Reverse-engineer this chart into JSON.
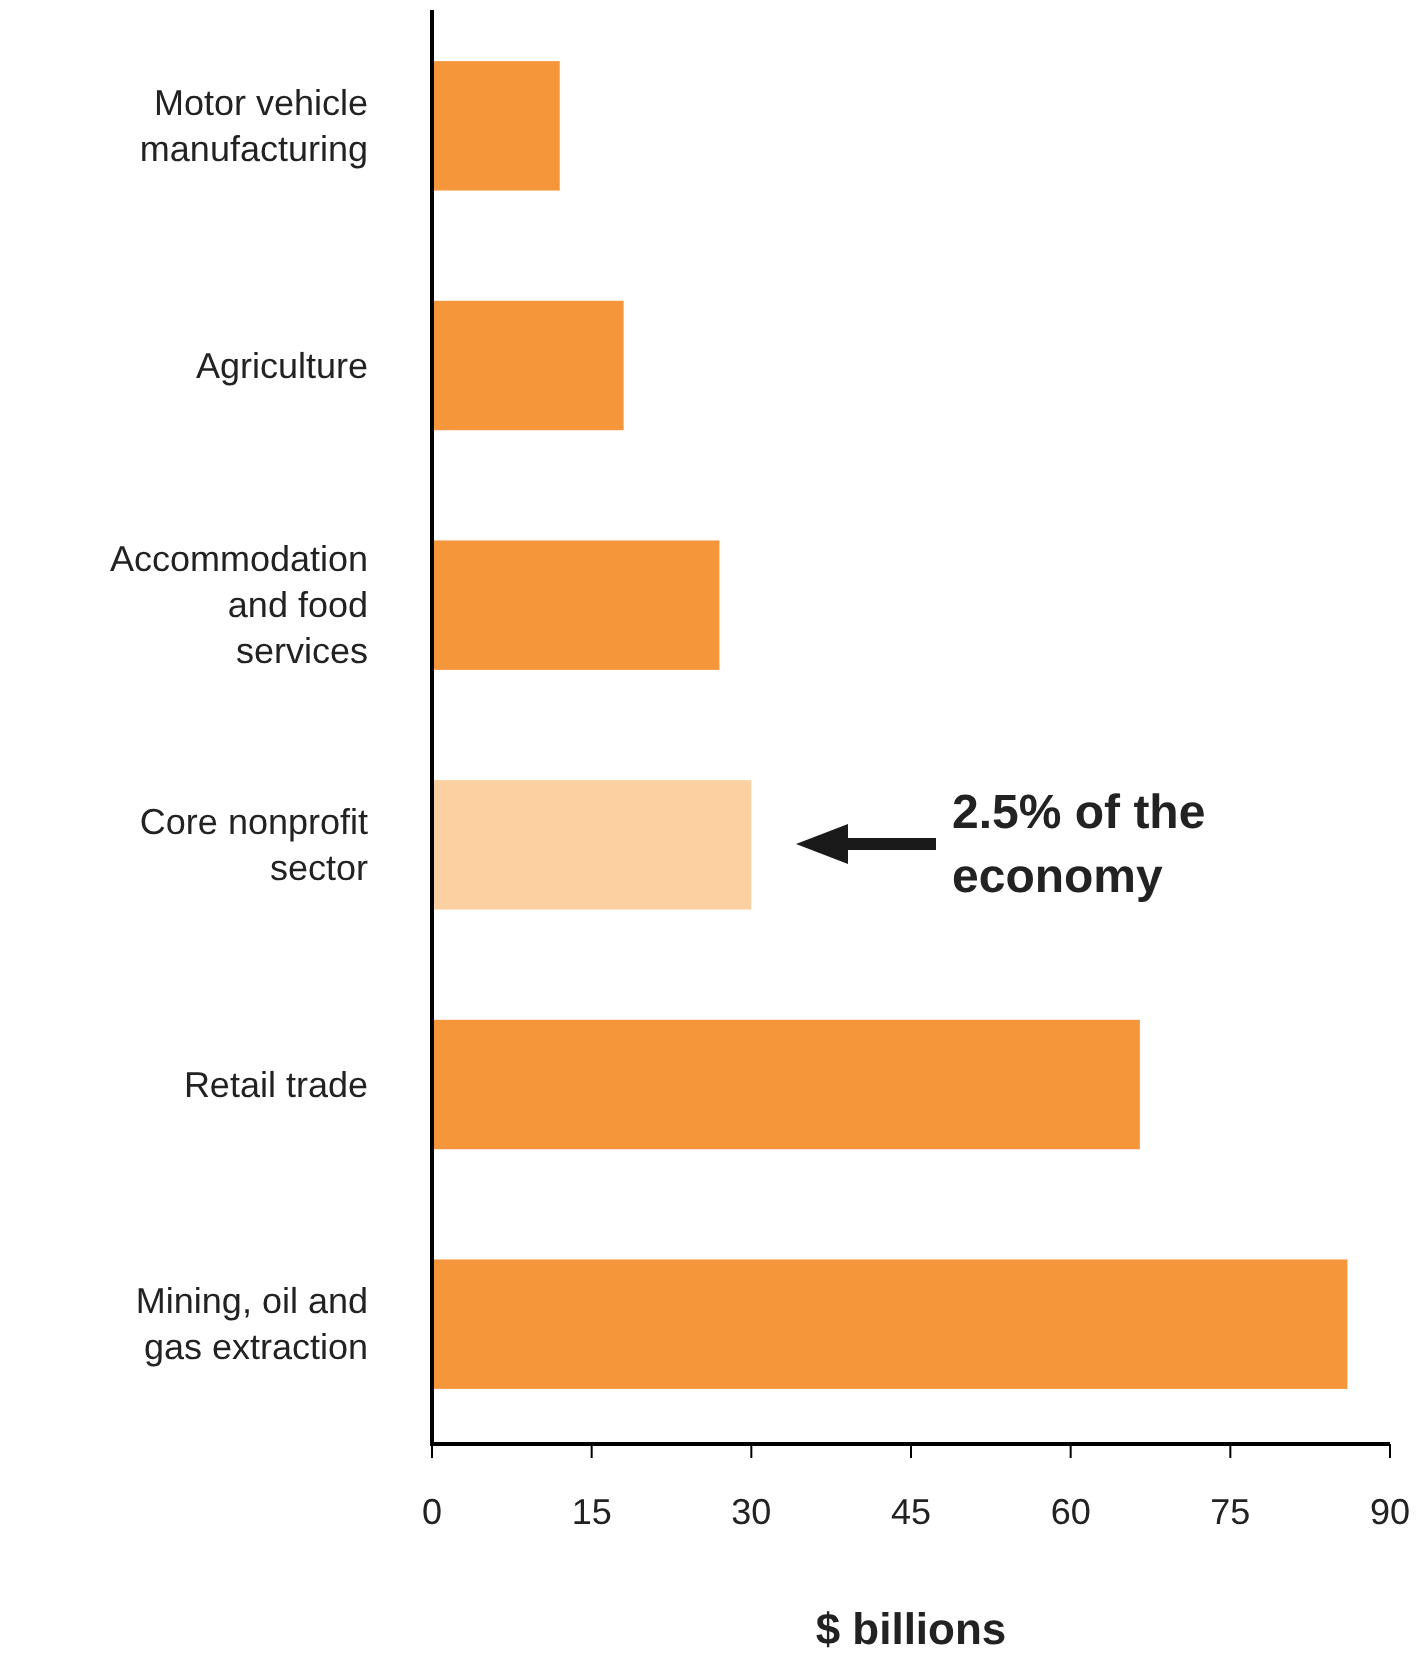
{
  "chart_data": {
    "type": "bar",
    "orientation": "horizontal",
    "xlabel": "$ billions",
    "categories": [
      "Motor vehicle manufacturing",
      "Agriculture",
      "Accommodation and food services",
      "Core nonprofit sector",
      "Retail trade",
      "Mining, oil and gas extraction"
    ],
    "values": [
      12,
      18,
      27,
      30,
      66.5,
      86
    ],
    "colors": [
      "#f5963a",
      "#f5963a",
      "#f5963a",
      "#fdd0a2",
      "#f5963a",
      "#f5963a"
    ],
    "xlim": [
      0,
      90
    ],
    "xticks": [
      0,
      15,
      30,
      45,
      60,
      75,
      90
    ],
    "grid": false,
    "annotations": [
      "2.5% of the economy"
    ]
  }
}
